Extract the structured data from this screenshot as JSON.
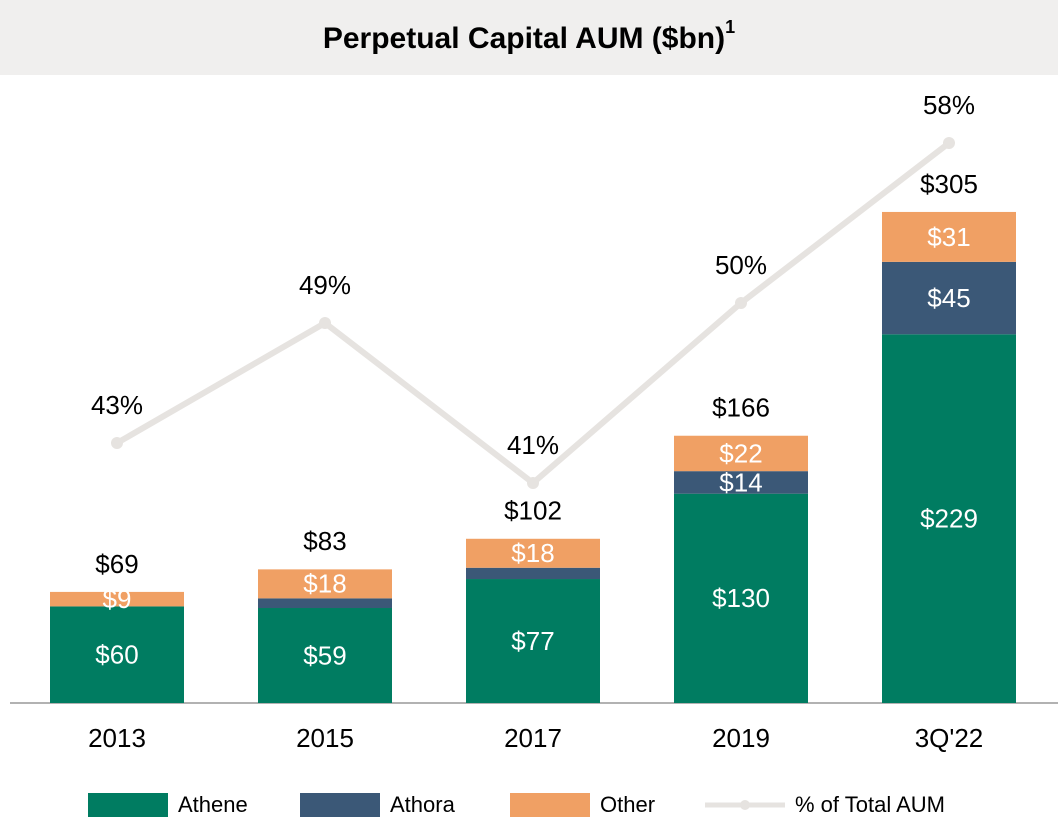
{
  "chart_data": {
    "type": "stacked_bar_line",
    "title": "Perpetual Capital AUM ($bn)",
    "title_footnote": "1",
    "categories": [
      "2013",
      "2015",
      "2017",
      "2019",
      "3Q'22"
    ],
    "series": [
      {
        "name": "Athene",
        "color": "#007c61",
        "values": [
          60,
          59,
          77,
          130,
          229
        ],
        "value_labels": [
          "$60",
          "$59",
          "$77",
          "$130",
          "$229"
        ]
      },
      {
        "name": "Athora",
        "color": "#3b5877",
        "values": [
          0,
          6,
          7,
          14,
          45
        ],
        "value_labels": [
          null,
          null,
          null,
          "$14",
          "$45"
        ]
      },
      {
        "name": "Other",
        "color": "#f0a064",
        "values": [
          9,
          18,
          18,
          22,
          31
        ],
        "value_labels": [
          "$9",
          "$18",
          "$18",
          "$22",
          "$31"
        ]
      }
    ],
    "totals": {
      "values": [
        69,
        83,
        102,
        166,
        305
      ],
      "value_labels": [
        "$69",
        "$83",
        "$102",
        "$166",
        "$305"
      ]
    },
    "line": {
      "name": "% of Total AUM",
      "color": "#e6e3e0",
      "values": [
        43,
        49,
        41,
        50,
        58
      ],
      "value_labels": [
        "43%",
        "49%",
        "41%",
        "50%",
        "58%"
      ]
    }
  }
}
